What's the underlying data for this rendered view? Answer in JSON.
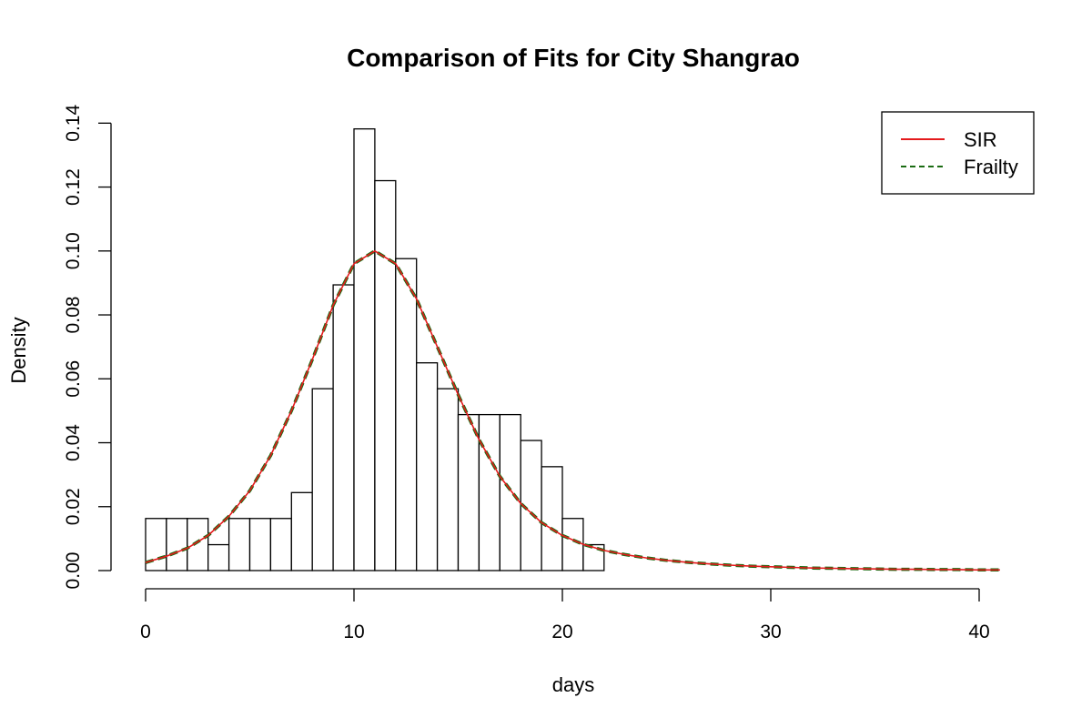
{
  "chart_data": {
    "type": "bar",
    "title": "Comparison of Fits for City Shangrao",
    "xlabel": "days",
    "ylabel": "Density",
    "xlim": [
      0,
      41
    ],
    "ylim": [
      0,
      0.14
    ],
    "x_ticks": [
      0,
      10,
      20,
      30,
      40
    ],
    "y_ticks": [
      0.0,
      0.02,
      0.04,
      0.06,
      0.08,
      0.1,
      0.12,
      0.14
    ],
    "y_tick_labels": [
      "0.00",
      "0.02",
      "0.04",
      "0.06",
      "0.08",
      "0.10",
      "0.12",
      "0.14"
    ],
    "histogram": {
      "bin_width": 1,
      "bins_start": [
        0,
        1,
        2,
        3,
        4,
        5,
        6,
        7,
        8,
        9,
        10,
        11,
        12,
        13,
        14,
        15,
        16,
        17,
        18,
        19,
        20,
        21
      ],
      "values": [
        0.0163,
        0.0163,
        0.0163,
        0.0081,
        0.0163,
        0.0163,
        0.0163,
        0.0244,
        0.0569,
        0.0894,
        0.1382,
        0.122,
        0.0976,
        0.065,
        0.0569,
        0.0488,
        0.0488,
        0.0488,
        0.0407,
        0.0325,
        0.0163,
        0.0081
      ]
    },
    "series": [
      {
        "name": "SIR",
        "color": "#e41a1c",
        "style": "solid",
        "x": [
          0,
          1,
          2,
          3,
          4,
          5,
          6,
          7,
          8,
          9,
          10,
          11,
          12,
          13,
          14,
          15,
          16,
          17,
          18,
          19,
          20,
          21,
          22,
          23,
          24,
          25,
          26,
          27,
          28,
          29,
          30,
          31,
          32,
          33,
          34,
          35,
          36,
          37,
          38,
          39,
          40,
          41
        ],
        "values": [
          0.0025,
          0.0045,
          0.007,
          0.011,
          0.017,
          0.025,
          0.036,
          0.05,
          0.066,
          0.083,
          0.096,
          0.1,
          0.096,
          0.085,
          0.07,
          0.055,
          0.041,
          0.0295,
          0.021,
          0.015,
          0.011,
          0.0082,
          0.0063,
          0.005,
          0.004,
          0.0032,
          0.0026,
          0.0021,
          0.0017,
          0.0014,
          0.0012,
          0.001,
          0.0008,
          0.0007,
          0.0006,
          0.0005,
          0.0004,
          0.0004,
          0.0003,
          0.0003,
          0.0002,
          0.0002
        ]
      },
      {
        "name": "Frailty",
        "color": "#1a6b12",
        "style": "dashed",
        "x": [
          0,
          1,
          2,
          3,
          4,
          5,
          6,
          7,
          8,
          9,
          10,
          11,
          12,
          13,
          14,
          15,
          16,
          17,
          18,
          19,
          20,
          21,
          22,
          23,
          24,
          25,
          26,
          27,
          28,
          29,
          30,
          31,
          32,
          33,
          34,
          35,
          36,
          37,
          38,
          39,
          40,
          41
        ],
        "values": [
          0.0025,
          0.0045,
          0.007,
          0.011,
          0.017,
          0.025,
          0.036,
          0.05,
          0.066,
          0.083,
          0.096,
          0.1,
          0.096,
          0.085,
          0.07,
          0.055,
          0.041,
          0.0295,
          0.021,
          0.015,
          0.011,
          0.0082,
          0.0063,
          0.005,
          0.004,
          0.0032,
          0.0026,
          0.0021,
          0.0017,
          0.0014,
          0.0012,
          0.001,
          0.0008,
          0.0007,
          0.0006,
          0.0005,
          0.0004,
          0.0004,
          0.0003,
          0.0003,
          0.0002,
          0.0002
        ]
      }
    ],
    "legend": {
      "position": "top-right",
      "entries": [
        "SIR",
        "Frailty"
      ]
    },
    "grid": false
  }
}
